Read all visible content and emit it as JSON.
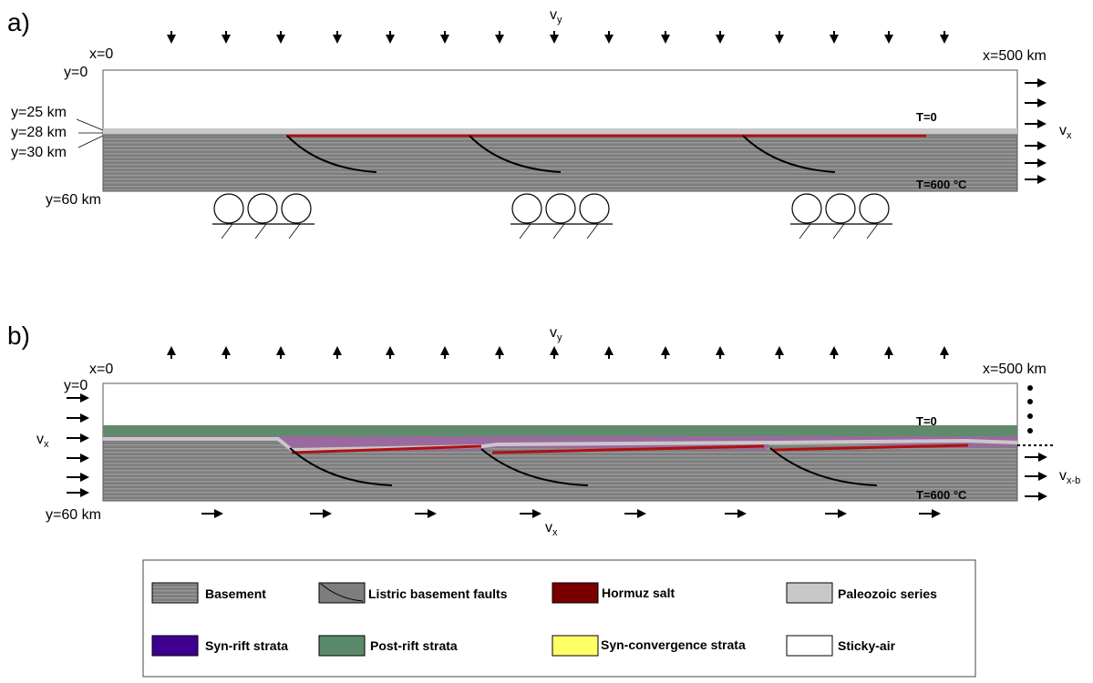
{
  "panel_a": {
    "letter": "a)",
    "vy": "v",
    "vy_sub": "y",
    "x0": "x=0",
    "x500": "x=500 km",
    "y0": "y=0",
    "y25": "y=25 km",
    "y28": "y=28 km",
    "y30": "y=30 km",
    "y60": "y=60 km",
    "t0": "T=0",
    "t600": "T=600 °C",
    "vx": "v",
    "vx_sub": "x"
  },
  "panel_b": {
    "letter": "b)",
    "vy": "v",
    "vy_sub": "y",
    "x0": "x=0",
    "x500": "x=500 km",
    "y0": "y=0",
    "y60": "y=60 km",
    "t0": "T=0",
    "t600": "T=600 °C",
    "vx_left": "v",
    "vx_left_sub": "x",
    "vx_right": "v",
    "vx_right_sub": "x-b",
    "vx_bottom": "v",
    "vx_bottom_sub": "x"
  },
  "legend": {
    "items": [
      {
        "label": "Basement",
        "swatch": "basement"
      },
      {
        "label": "Listric basement faults",
        "swatch": "fault"
      },
      {
        "label": "Hormuz salt",
        "swatch": "#7a0000"
      },
      {
        "label": "Paleozoic series",
        "swatch": "#c8c8c8"
      },
      {
        "label": "Syn-rift strata",
        "swatch": "#3d0090"
      },
      {
        "label": "Post-rift strata",
        "swatch": "#5a8a6a"
      },
      {
        "label": "Syn-convergence strata",
        "swatch": "#ffff66"
      },
      {
        "label": "Sticky-air",
        "swatch": "#ffffff"
      }
    ]
  },
  "colors": {
    "basement": "#7d7d7d",
    "paleozoic": "#c8c8c8",
    "salt": "#b01010",
    "synrift": "#9a6a9e",
    "postrift": "#5f8a6c",
    "fault": "#000000"
  }
}
